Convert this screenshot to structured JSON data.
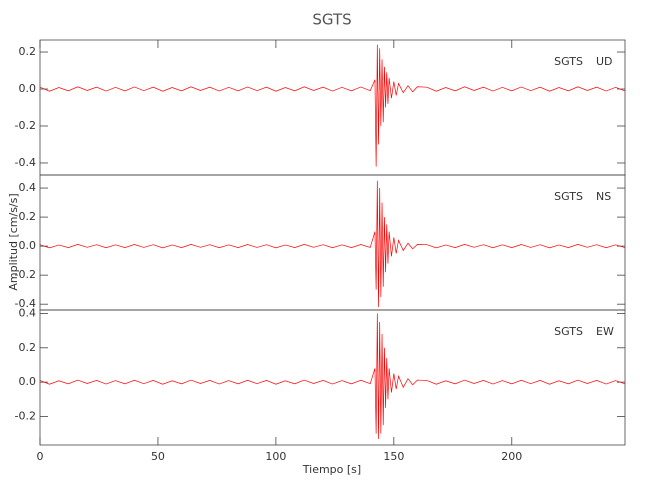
{
  "chart_data": [
    {
      "type": "line",
      "title": "SGTS",
      "station": "SGTS",
      "component": "UD",
      "color": "#ff0000",
      "xlim": [
        0,
        248
      ],
      "ylim": [
        -0.465,
        0.265
      ],
      "yticks": [
        0.2,
        {
          "value": 0,
          "label": "0.0"
        },
        -0.2,
        -0.4
      ],
      "x": [
        0,
        4,
        8,
        12,
        16,
        20,
        24,
        28,
        32,
        36,
        40,
        44,
        48,
        52,
        56,
        60,
        64,
        68,
        72,
        76,
        80,
        84,
        88,
        92,
        96,
        100,
        104,
        108,
        112,
        116,
        120,
        124,
        128,
        132,
        136,
        140,
        142,
        142.5,
        143,
        143.5,
        144,
        144.5,
        145,
        145.5,
        146,
        146.5,
        147,
        147.5,
        148,
        149,
        150,
        151,
        152,
        154,
        156,
        158,
        160,
        164,
        168,
        172,
        176,
        180,
        184,
        188,
        192,
        196,
        200,
        204,
        208,
        212,
        216,
        220,
        224,
        228,
        232,
        236,
        240,
        244,
        248
      ],
      "values": [
        0.01,
        -0.012,
        0.008,
        -0.01,
        0.012,
        -0.008,
        0.01,
        -0.011,
        0.009,
        -0.01,
        0.011,
        -0.009,
        0.01,
        -0.012,
        0.008,
        -0.01,
        0.012,
        -0.008,
        0.01,
        -0.011,
        0.009,
        -0.01,
        0.011,
        -0.009,
        0.01,
        -0.012,
        0.008,
        -0.01,
        0.012,
        -0.008,
        0.01,
        -0.011,
        0.009,
        -0.01,
        0.011,
        -0.009,
        0.05,
        -0.42,
        0.24,
        -0.3,
        0.22,
        -0.2,
        0.16,
        -0.18,
        0.12,
        -0.1,
        0.09,
        -0.08,
        0.06,
        -0.05,
        0.04,
        -0.035,
        0.03,
        -0.02,
        0.018,
        -0.015,
        0.012,
        0.01,
        -0.012,
        0.008,
        -0.01,
        0.012,
        -0.008,
        0.01,
        -0.011,
        0.009,
        -0.01,
        0.011,
        -0.009,
        0.01,
        -0.012,
        0.008,
        -0.01,
        0.012,
        -0.008,
        0.01,
        -0.011,
        0.009,
        -0.01
      ]
    },
    {
      "type": "line",
      "ylabel": "Amplitud [cm/s/s]",
      "station": "SGTS",
      "component": "NS",
      "color": "#ff0000",
      "xlim": [
        0,
        248
      ],
      "ylim": [
        -0.44,
        0.49
      ],
      "yticks": [
        0.4,
        0.2,
        {
          "value": 0,
          "label": "0.0"
        },
        -0.2,
        -0.4
      ],
      "x": [
        0,
        4,
        8,
        12,
        16,
        20,
        24,
        28,
        32,
        36,
        40,
        44,
        48,
        52,
        56,
        60,
        64,
        68,
        72,
        76,
        80,
        84,
        88,
        92,
        96,
        100,
        104,
        108,
        112,
        116,
        120,
        124,
        128,
        132,
        136,
        140,
        142,
        142.5,
        143,
        143.5,
        144,
        144.5,
        145,
        145.5,
        146,
        146.5,
        147,
        147.5,
        148,
        149,
        150,
        151,
        152,
        154,
        156,
        158,
        160,
        164,
        168,
        172,
        176,
        180,
        184,
        188,
        192,
        196,
        200,
        204,
        208,
        212,
        216,
        220,
        224,
        228,
        232,
        236,
        240,
        244,
        248
      ],
      "values": [
        0.01,
        -0.012,
        0.008,
        -0.01,
        0.012,
        -0.008,
        0.01,
        -0.011,
        0.009,
        -0.01,
        0.011,
        -0.009,
        0.01,
        -0.012,
        0.008,
        -0.01,
        0.012,
        -0.008,
        0.01,
        -0.011,
        0.009,
        -0.01,
        0.011,
        -0.009,
        0.01,
        -0.012,
        0.008,
        -0.01,
        0.012,
        -0.008,
        0.01,
        -0.011,
        0.009,
        -0.01,
        0.011,
        -0.009,
        0.1,
        -0.3,
        0.45,
        -0.42,
        0.4,
        -0.35,
        0.3,
        -0.28,
        0.2,
        -0.18,
        0.15,
        -0.12,
        0.1,
        -0.07,
        0.06,
        -0.05,
        0.04,
        -0.03,
        0.02,
        -0.018,
        0.012,
        0.01,
        -0.012,
        0.008,
        -0.01,
        0.012,
        -0.008,
        0.01,
        -0.011,
        0.009,
        -0.01,
        0.011,
        -0.009,
        0.01,
        -0.012,
        0.008,
        -0.01,
        0.012,
        -0.008,
        0.01,
        -0.011,
        0.009,
        -0.01
      ]
    },
    {
      "type": "line",
      "xlabel": "Tiempo [s]",
      "station": "SGTS",
      "component": "EW",
      "color": "#ff0000",
      "xlim": [
        0,
        248
      ],
      "ylim": [
        -0.366,
        0.42
      ],
      "xticks": [
        0,
        50,
        100,
        150,
        200
      ],
      "yticks": [
        0.4,
        0.2,
        {
          "value": 0,
          "label": "0.0"
        },
        -0.2
      ],
      "x": [
        0,
        4,
        8,
        12,
        16,
        20,
        24,
        28,
        32,
        36,
        40,
        44,
        48,
        52,
        56,
        60,
        64,
        68,
        72,
        76,
        80,
        84,
        88,
        92,
        96,
        100,
        104,
        108,
        112,
        116,
        120,
        124,
        128,
        132,
        136,
        140,
        142,
        142.5,
        143,
        143.5,
        144,
        144.5,
        145,
        145.5,
        146,
        146.5,
        147,
        147.5,
        148,
        149,
        150,
        151,
        152,
        154,
        156,
        158,
        160,
        164,
        168,
        172,
        176,
        180,
        184,
        188,
        192,
        196,
        200,
        204,
        208,
        212,
        216,
        220,
        224,
        228,
        232,
        236,
        240,
        244,
        248
      ],
      "values": [
        0.01,
        -0.012,
        0.008,
        -0.01,
        0.012,
        -0.008,
        0.01,
        -0.011,
        0.009,
        -0.01,
        0.011,
        -0.009,
        0.01,
        -0.012,
        0.008,
        -0.01,
        0.012,
        -0.008,
        0.01,
        -0.011,
        0.009,
        -0.01,
        0.011,
        -0.009,
        0.01,
        -0.012,
        0.008,
        -0.01,
        0.012,
        -0.008,
        0.01,
        -0.011,
        0.009,
        -0.01,
        0.011,
        -0.009,
        0.08,
        -0.3,
        0.4,
        -0.33,
        0.35,
        -0.3,
        0.28,
        -0.25,
        0.2,
        -0.15,
        0.14,
        -0.1,
        0.08,
        -0.06,
        0.05,
        -0.04,
        0.035,
        -0.03,
        0.02,
        -0.015,
        0.012,
        0.01,
        -0.012,
        0.008,
        -0.01,
        0.012,
        -0.008,
        0.01,
        -0.011,
        0.009,
        -0.01,
        0.011,
        -0.009,
        0.01,
        -0.012,
        0.008,
        -0.01,
        0.012,
        -0.008,
        0.01,
        -0.011,
        0.009,
        -0.01
      ]
    }
  ]
}
